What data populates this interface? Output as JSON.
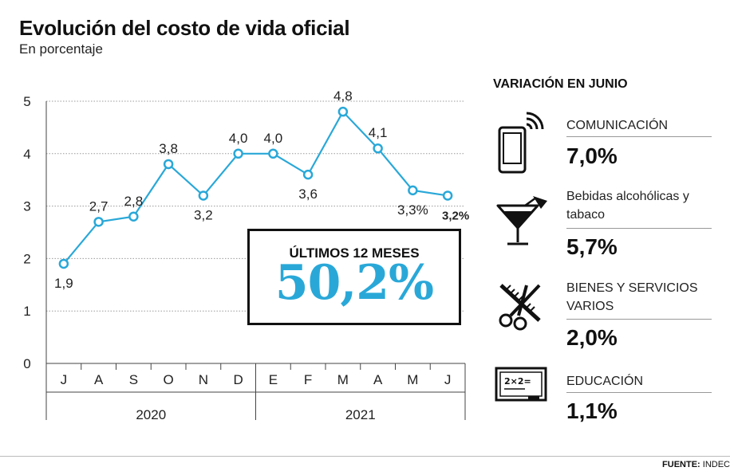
{
  "header": {
    "title": "Evolución del costo de vida oficial",
    "subtitle": "En porcentaje"
  },
  "chart_data": {
    "type": "line",
    "title": "Evolución del costo de vida oficial",
    "ylabel": "En porcentaje",
    "ylim": [
      0,
      5
    ],
    "yticks": [
      "0",
      "1",
      "2",
      "3",
      "4",
      "5"
    ],
    "categories": [
      "J",
      "A",
      "S",
      "O",
      "N",
      "D",
      "E",
      "F",
      "M",
      "A",
      "M",
      "J"
    ],
    "data_labels": [
      "1,9",
      "2,7",
      "2,8",
      "3,8",
      "3,2",
      "4,0",
      "4,0",
      "3,6",
      "4,8",
      "4,1",
      "3,3%",
      "3,2%"
    ],
    "series": [
      {
        "name": "Costo de vida",
        "values": [
          1.9,
          2.7,
          2.8,
          3.8,
          3.2,
          4.0,
          4.0,
          3.6,
          4.8,
          4.1,
          3.3,
          3.2
        ]
      }
    ],
    "years": [
      {
        "label": "2020",
        "from": 0,
        "to": 5
      },
      {
        "label": "2021",
        "from": 6,
        "to": 11
      }
    ],
    "line_color": "#29a8d8",
    "grid": true
  },
  "summary": {
    "label": "ÚLTIMOS 12 MESES",
    "value": "50,2%",
    "color": "#29a8d8"
  },
  "sidebar": {
    "title": "VARIACIÓN EN JUNIO",
    "items": [
      {
        "icon": "phone-icon",
        "label": "COMUNICACIÓN",
        "value": "7,0%"
      },
      {
        "icon": "cocktail-icon",
        "label": "Bebidas alcohólicas y tabaco",
        "value": "5,7%"
      },
      {
        "icon": "scissors-comb-icon",
        "label": "BIENES Y SERVICIOS VARIOS",
        "value": "2,0%"
      },
      {
        "icon": "blackboard-icon",
        "label": "EDUCACIÓN",
        "value": "1,1%"
      }
    ]
  },
  "source": {
    "prefix": "FUENTE:",
    "name": "INDEC"
  }
}
